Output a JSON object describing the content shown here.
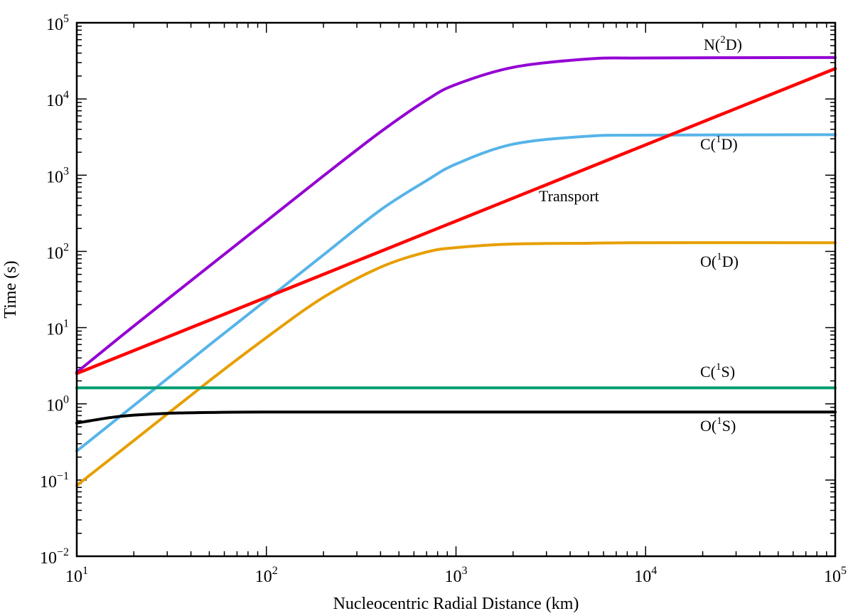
{
  "chart_data": {
    "type": "line",
    "xscale": "log",
    "yscale": "log",
    "xlim": [
      10,
      100000
    ],
    "ylim": [
      0.01,
      100000
    ],
    "xlabel": "Nucleocentric Radial Distance (km)",
    "ylabel": "Time (s)",
    "grid": false,
    "x_ticks": [
      {
        "base": "10",
        "exp": "1"
      },
      {
        "base": "10",
        "exp": "2"
      },
      {
        "base": "10",
        "exp": "3"
      },
      {
        "base": "10",
        "exp": "4"
      },
      {
        "base": "10",
        "exp": "5"
      }
    ],
    "y_ticks": [
      {
        "base": "10",
        "exp": "−2"
      },
      {
        "base": "10",
        "exp": "−1"
      },
      {
        "base": "10",
        "exp": "0"
      },
      {
        "base": "10",
        "exp": "1"
      },
      {
        "base": "10",
        "exp": "2"
      },
      {
        "base": "10",
        "exp": "3"
      },
      {
        "base": "10",
        "exp": "4"
      },
      {
        "base": "10",
        "exp": "5"
      }
    ],
    "series": [
      {
        "name": "N(2D)",
        "label_prefix": "N(",
        "label_sup": "2",
        "label_suffix": "D)",
        "color": "#9400D3",
        "x": [
          10,
          20,
          50,
          100,
          200,
          400,
          700,
          1000,
          2000,
          5000,
          10000,
          100000
        ],
        "y": [
          2.6,
          10.5,
          64,
          250,
          980,
          3700,
          9700,
          15500,
          26000,
          33500,
          34500,
          35000
        ]
      },
      {
        "name": "C(1D)",
        "label_prefix": "C(",
        "label_sup": "1",
        "label_suffix": "D)",
        "color": "#56B4E9",
        "x": [
          10,
          20,
          50,
          100,
          200,
          400,
          700,
          1000,
          2000,
          5000,
          10000,
          100000
        ],
        "y": [
          0.24,
          0.95,
          5.9,
          23,
          90,
          350,
          850,
          1400,
          2550,
          3250,
          3350,
          3400
        ]
      },
      {
        "name": "Transport",
        "label_prefix": "Transport",
        "label_sup": "",
        "label_suffix": "",
        "color": "#FF0000",
        "x": [
          10,
          100000
        ],
        "y": [
          2.5,
          25000
        ]
      },
      {
        "name": "O(1D)",
        "label_prefix": "O(",
        "label_sup": "1",
        "label_suffix": "D)",
        "color": "#E69F00",
        "x": [
          10,
          20,
          50,
          100,
          200,
          400,
          700,
          1000,
          2000,
          5000,
          10000,
          100000
        ],
        "y": [
          0.085,
          0.33,
          2.0,
          7.4,
          25,
          62,
          98,
          112,
          125,
          128,
          130,
          130
        ]
      },
      {
        "name": "C(1S)",
        "label_prefix": "C(",
        "label_sup": "1",
        "label_suffix": "S)",
        "color": "#009E73",
        "x": [
          10,
          100000
        ],
        "y": [
          1.62,
          1.62
        ]
      },
      {
        "name": "O(1S)",
        "label_prefix": "O(",
        "label_sup": "1",
        "label_suffix": "S)",
        "color": "#000000",
        "x": [
          10,
          15,
          20,
          30,
          50,
          100,
          1000,
          100000
        ],
        "y": [
          0.56,
          0.66,
          0.71,
          0.75,
          0.77,
          0.78,
          0.78,
          0.78
        ]
      }
    ]
  }
}
